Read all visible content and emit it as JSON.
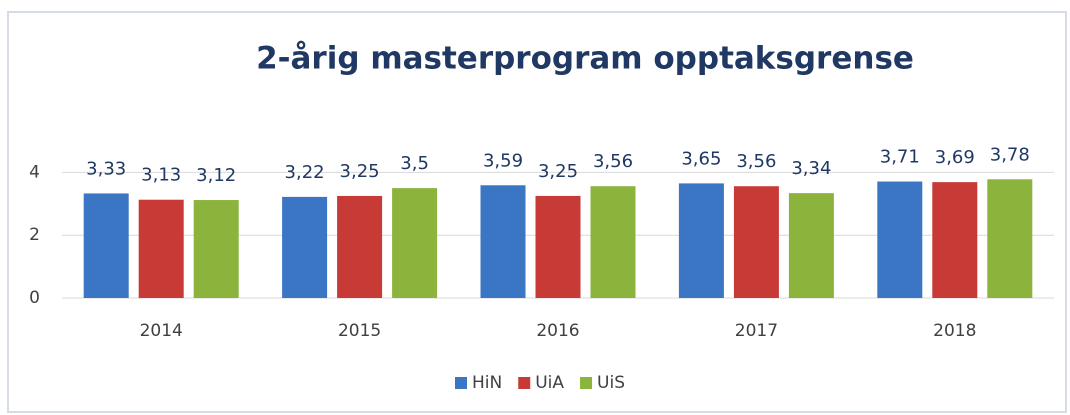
{
  "chart_data": {
    "type": "bar",
    "title": "2-årig masterprogram opptaksgrense",
    "categories": [
      "2014",
      "2015",
      "2016",
      "2017",
      "2018"
    ],
    "series": [
      {
        "name": "HiN",
        "color": "#3b76c4",
        "values": [
          3.33,
          3.22,
          3.59,
          3.65,
          3.71
        ],
        "value_labels": [
          "3,33",
          "3,22",
          "3,59",
          "3,65",
          "3,71"
        ]
      },
      {
        "name": "UiA",
        "color": "#c83a36",
        "values": [
          3.13,
          3.25,
          3.25,
          3.56,
          3.69
        ],
        "value_labels": [
          "3,13",
          "3,25",
          "3,25",
          "3,56",
          "3,69"
        ]
      },
      {
        "name": "UiS",
        "color": "#8cb43c",
        "values": [
          3.12,
          3.5,
          3.56,
          3.34,
          3.78
        ],
        "value_labels": [
          "3,12",
          "3,5",
          "3,56",
          "3,34",
          "3,78"
        ]
      }
    ],
    "ylim": [
      0,
      5
    ],
    "yticks": [
      0,
      2,
      4
    ],
    "grid": true,
    "legend": "bottom"
  }
}
